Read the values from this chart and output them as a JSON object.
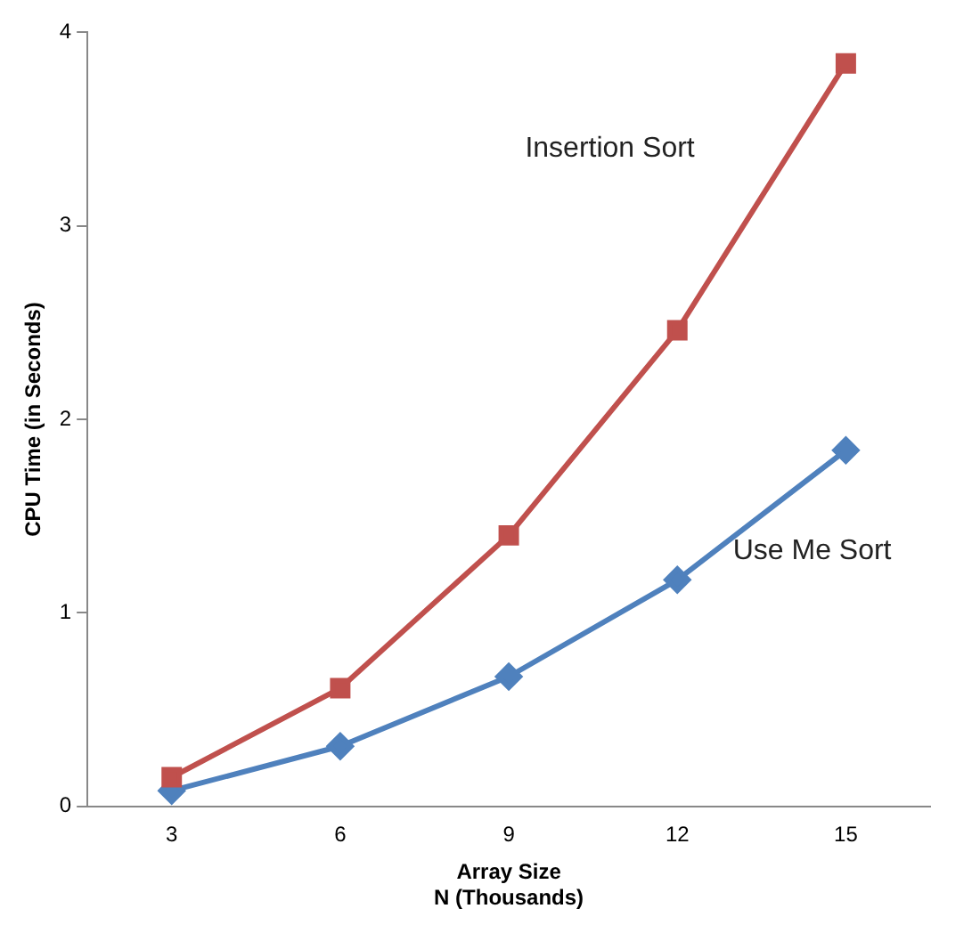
{
  "chart_data": {
    "type": "line",
    "xlabel": "Array Size\nN (Thousands)",
    "ylabel": "CPU Time (in Seconds)",
    "categories": [
      "3",
      "6",
      "9",
      "12",
      "15"
    ],
    "ylim": [
      0,
      4
    ],
    "yticks": [
      0,
      1,
      2,
      3,
      4
    ],
    "grid": false,
    "legend": false,
    "series": [
      {
        "name": "Insertion Sort",
        "color": "#c0504d",
        "marker": "square",
        "values": [
          0.15,
          0.61,
          1.4,
          2.46,
          3.84
        ]
      },
      {
        "name": "Use Me Sort",
        "color": "#4f81bd",
        "marker": "diamond",
        "values": [
          0.08,
          0.31,
          0.67,
          1.17,
          1.84
        ]
      }
    ]
  }
}
